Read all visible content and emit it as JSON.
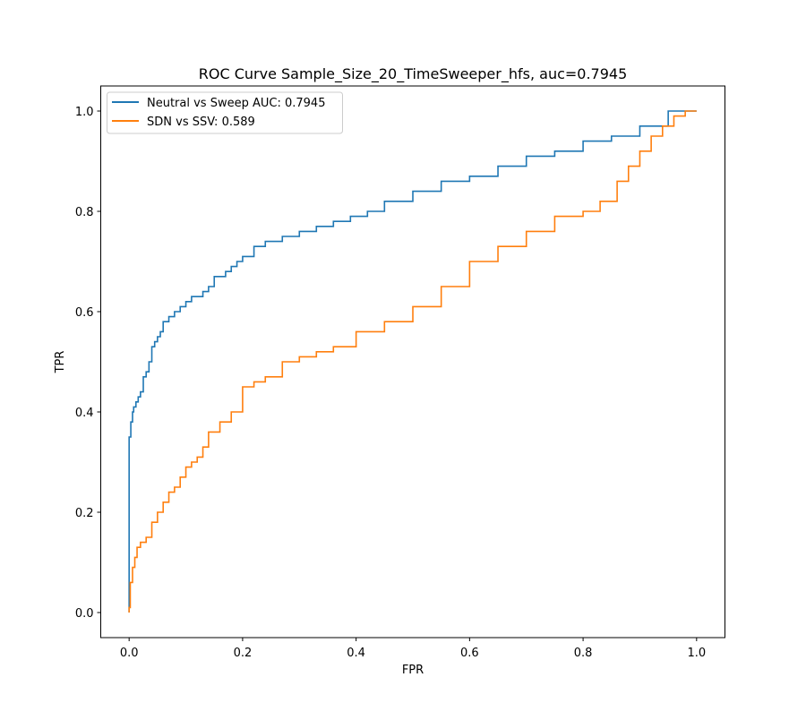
{
  "chart_data": {
    "type": "line",
    "title": "ROC Curve Sample_Size_20_TimeSweeper_hfs, auc=0.7945",
    "xlabel": "FPR",
    "ylabel": "TPR",
    "xlim": [
      -0.05,
      1.05
    ],
    "ylim": [
      -0.05,
      1.05
    ],
    "xticks": [
      0.0,
      0.2,
      0.4,
      0.6,
      0.8,
      1.0
    ],
    "yticks": [
      0.0,
      0.2,
      0.4,
      0.6,
      0.8,
      1.0
    ],
    "xtick_labels": [
      "0.0",
      "0.2",
      "0.4",
      "0.6",
      "0.8",
      "1.0"
    ],
    "ytick_labels": [
      "0.0",
      "0.2",
      "0.4",
      "0.6",
      "0.8",
      "1.0"
    ],
    "grid": false,
    "legend_position": "upper-left",
    "series": [
      {
        "name": "Neutral vs Sweep AUC: 0.7945",
        "color": "#1f77b4",
        "step": true,
        "x": [
          0.0,
          0.0,
          0.003,
          0.006,
          0.008,
          0.012,
          0.016,
          0.02,
          0.025,
          0.03,
          0.035,
          0.04,
          0.045,
          0.05,
          0.055,
          0.06,
          0.07,
          0.08,
          0.09,
          0.1,
          0.11,
          0.12,
          0.13,
          0.14,
          0.15,
          0.17,
          0.18,
          0.19,
          0.2,
          0.22,
          0.24,
          0.27,
          0.3,
          0.33,
          0.36,
          0.39,
          0.42,
          0.45,
          0.5,
          0.55,
          0.6,
          0.65,
          0.7,
          0.75,
          0.8,
          0.85,
          0.9,
          0.95,
          1.0
        ],
        "y": [
          0.0,
          0.33,
          0.35,
          0.38,
          0.4,
          0.41,
          0.42,
          0.43,
          0.44,
          0.47,
          0.48,
          0.5,
          0.53,
          0.54,
          0.55,
          0.56,
          0.58,
          0.59,
          0.6,
          0.61,
          0.62,
          0.63,
          0.63,
          0.64,
          0.65,
          0.67,
          0.68,
          0.69,
          0.7,
          0.71,
          0.73,
          0.74,
          0.75,
          0.76,
          0.77,
          0.78,
          0.79,
          0.8,
          0.82,
          0.84,
          0.86,
          0.87,
          0.89,
          0.91,
          0.92,
          0.94,
          0.95,
          0.97,
          1.0
        ]
      },
      {
        "name": "SDN vs SSV: 0.589",
        "color": "#ff7f0e",
        "step": true,
        "x": [
          0.0,
          0.002,
          0.006,
          0.01,
          0.014,
          0.02,
          0.03,
          0.04,
          0.05,
          0.06,
          0.07,
          0.08,
          0.09,
          0.1,
          0.11,
          0.12,
          0.13,
          0.14,
          0.16,
          0.18,
          0.2,
          0.22,
          0.24,
          0.27,
          0.3,
          0.33,
          0.36,
          0.4,
          0.45,
          0.5,
          0.55,
          0.6,
          0.65,
          0.7,
          0.75,
          0.8,
          0.83,
          0.86,
          0.88,
          0.9,
          0.92,
          0.94,
          0.96,
          0.98,
          1.0
        ],
        "y": [
          0.0,
          0.01,
          0.06,
          0.09,
          0.11,
          0.13,
          0.14,
          0.15,
          0.18,
          0.2,
          0.22,
          0.24,
          0.25,
          0.27,
          0.29,
          0.3,
          0.31,
          0.33,
          0.36,
          0.38,
          0.4,
          0.45,
          0.46,
          0.47,
          0.5,
          0.51,
          0.52,
          0.53,
          0.56,
          0.58,
          0.61,
          0.65,
          0.7,
          0.73,
          0.76,
          0.79,
          0.8,
          0.82,
          0.86,
          0.89,
          0.92,
          0.95,
          0.97,
          0.99,
          1.0
        ]
      }
    ]
  }
}
